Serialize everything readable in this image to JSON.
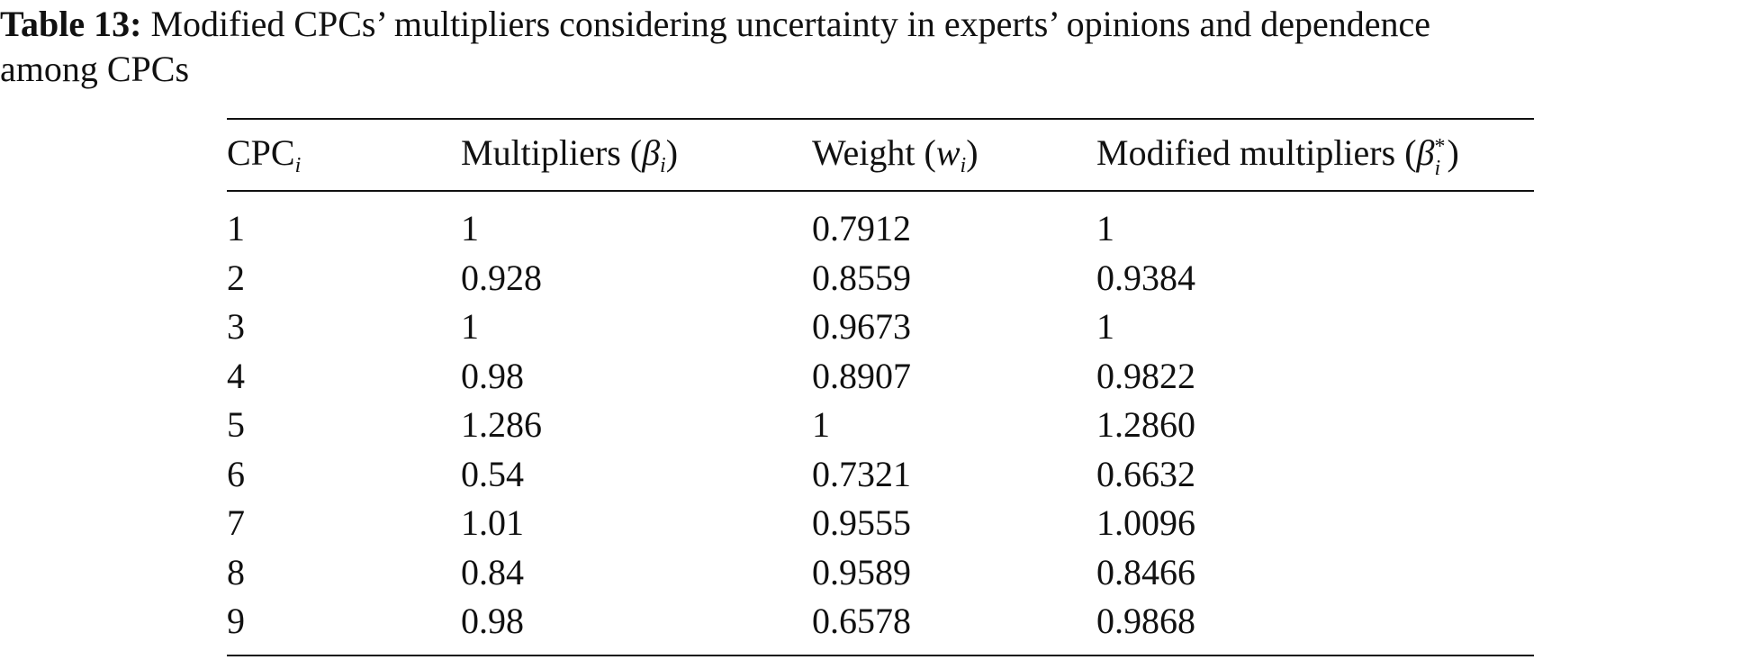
{
  "caption": {
    "label": "Table 13:",
    "text_line1": " Modified CPCs’ multipliers considering uncertainty in experts’ opinions and dependence",
    "text_line2": "among CPCs"
  },
  "table": {
    "headers": {
      "col1": {
        "text": "CPC",
        "sub": "i"
      },
      "col2": {
        "text": "Multipliers (",
        "symbol": "β",
        "sub": "i",
        "close": ")"
      },
      "col3": {
        "text": "Weight (",
        "symbol": "w",
        "sub": "i",
        "close": ")"
      },
      "col4": {
        "text": "Modified multipliers (",
        "symbol": "β",
        "sup": "*",
        "sub": "i",
        "close": ")"
      }
    },
    "rows": [
      {
        "cpc": "1",
        "multiplier": "1",
        "weight": "0.7912",
        "modified": "1"
      },
      {
        "cpc": "2",
        "multiplier": "0.928",
        "weight": "0.8559",
        "modified": "0.9384"
      },
      {
        "cpc": "3",
        "multiplier": "1",
        "weight": "0.9673",
        "modified": "1"
      },
      {
        "cpc": "4",
        "multiplier": "0.98",
        "weight": "0.8907",
        "modified": "0.9822"
      },
      {
        "cpc": "5",
        "multiplier": "1.286",
        "weight": "1",
        "modified": "1.2860"
      },
      {
        "cpc": "6",
        "multiplier": "0.54",
        "weight": "0.7321",
        "modified": "0.6632"
      },
      {
        "cpc": "7",
        "multiplier": "1.01",
        "weight": "0.9555",
        "modified": "1.0096"
      },
      {
        "cpc": "8",
        "multiplier": "0.84",
        "weight": "0.9589",
        "modified": "0.8466"
      },
      {
        "cpc": "9",
        "multiplier": "0.98",
        "weight": "0.6578",
        "modified": "0.9868"
      }
    ]
  }
}
